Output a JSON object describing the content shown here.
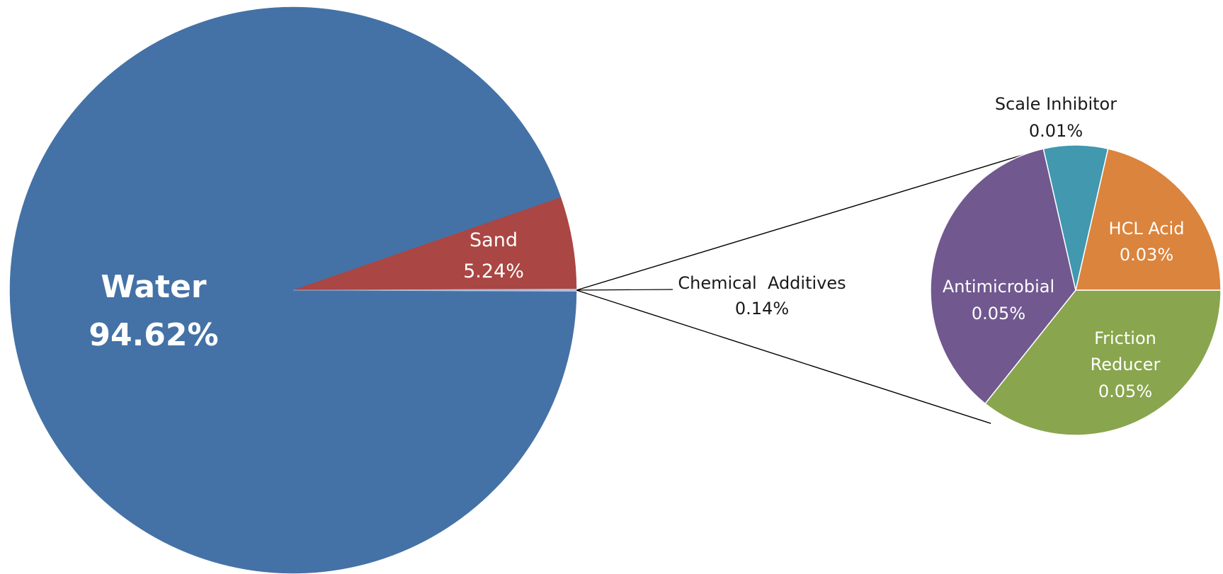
{
  "chart_data": {
    "type": "pie",
    "subtype": "pie-of-pie",
    "primary": {
      "slices": [
        {
          "label": "Water",
          "value": 94.62,
          "value_text": "94.62%",
          "color": "#4472A6"
        },
        {
          "label": "Sand",
          "value": 5.24,
          "value_text": "5.24%",
          "color": "#AA4643"
        },
        {
          "label": "Chemical  Additives",
          "value": 0.14,
          "value_text": "0.14%",
          "color": "#B0BEDB"
        }
      ]
    },
    "secondary": {
      "slices": [
        {
          "label": "HCL Acid",
          "value": 0.03,
          "value_text": "0.03%",
          "color": "#DB843D"
        },
        {
          "label": "Friction Reducer",
          "label_lines": [
            "Friction",
            "Reducer"
          ],
          "value": 0.05,
          "value_text": "0.05%",
          "color": "#89A54E"
        },
        {
          "label": "Antimicrobial",
          "value": 0.05,
          "value_text": "0.05%",
          "color": "#71588F"
        },
        {
          "label": "Scale Inhibitor",
          "value": 0.01,
          "value_text": "0.01%",
          "color": "#4198AF"
        }
      ]
    },
    "legend": "none"
  }
}
